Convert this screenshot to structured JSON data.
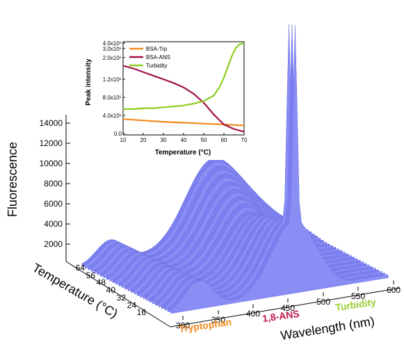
{
  "chart_data": [
    {
      "type": "surface",
      "zlabel": "Fluorescence",
      "xlabel": "Wavelength (nm)",
      "ylabel": "Temperature (°C)",
      "z_ticks": [
        "2000",
        "4000",
        "6000",
        "8000",
        "10000",
        "12000",
        "14000"
      ],
      "z_values": [
        2000,
        4000,
        6000,
        8000,
        10000,
        12000,
        14000
      ],
      "x_ticks": [
        "300",
        "350",
        "400",
        "450",
        "500",
        "550",
        "600"
      ],
      "y_ticks": [
        "16",
        "24",
        "32",
        "40",
        "48",
        "56",
        "64"
      ],
      "region_labels": [
        {
          "text": "Tryptophan",
          "color": "#f08a1c"
        },
        {
          "text": "1,8-ANS",
          "color": "#c0184a"
        },
        {
          "text": "Turbidity",
          "color": "#9acd32"
        }
      ],
      "surface_color": "#7b7ff0"
    },
    {
      "type": "line",
      "xlabel": "Temperature (°C)",
      "ylabel": "Peak  intensity",
      "x_ticks": [
        "10",
        "20",
        "30",
        "40",
        "50",
        "60",
        "70"
      ],
      "xlim": [
        10,
        70
      ],
      "y_ticks": [
        "0.0",
        "4.0x10⁵",
        "8.0x10⁵",
        "1.2x10⁶",
        "2.0x10⁶",
        "3.0x10⁶",
        "4.0x10⁶"
      ],
      "legend_position": "top-left",
      "series": [
        {
          "name": "BSA-Trp",
          "color": "#f08a1c",
          "x": [
            10,
            20,
            30,
            40,
            50,
            60,
            65,
            70
          ],
          "y": [
            0.16,
            0.145,
            0.13,
            0.12,
            0.11,
            0.1,
            0.095,
            0.09
          ]
        },
        {
          "name": "BSA-ANS",
          "color": "#a0104a",
          "x": [
            10,
            15,
            20,
            25,
            30,
            35,
            40,
            45,
            50,
            55,
            60,
            65,
            70
          ],
          "y": [
            0.75,
            0.72,
            0.68,
            0.64,
            0.6,
            0.56,
            0.51,
            0.44,
            0.34,
            0.21,
            0.1,
            0.05,
            0.02
          ]
        },
        {
          "name": "Turbidity",
          "color": "#8ccd1e",
          "x": [
            10,
            15,
            20,
            25,
            30,
            35,
            40,
            45,
            50,
            55,
            58,
            60,
            62,
            64,
            66,
            68,
            70
          ],
          "y": [
            0.27,
            0.27,
            0.28,
            0.28,
            0.29,
            0.3,
            0.31,
            0.33,
            0.36,
            0.42,
            0.52,
            0.62,
            0.74,
            0.86,
            0.95,
            0.99,
            1.0
          ]
        }
      ]
    }
  ]
}
